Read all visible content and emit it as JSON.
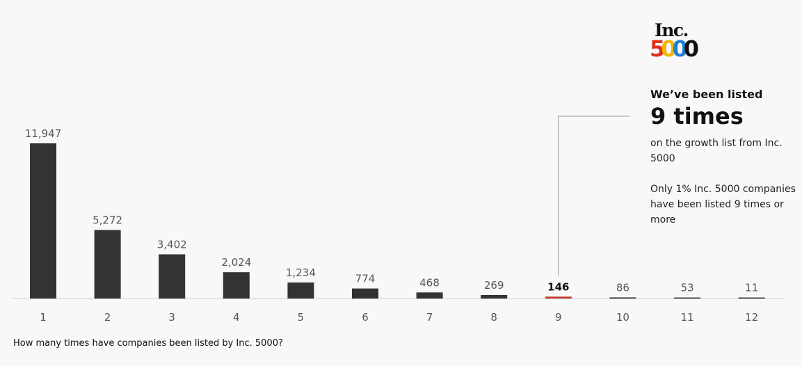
{
  "logo": {
    "word": "Inc.",
    "digits": [
      "5",
      "0",
      "0",
      "0"
    ]
  },
  "callout": {
    "kicker": "We’ve been listed",
    "big": "9 times",
    "text": "on the growth list from Inc. 5000",
    "text2": "Only 1% Inc. 5000 companies have been listed 9 times or more"
  },
  "caption": "How many times have companies been listed by Inc. 5000?",
  "chart_data": {
    "type": "bar",
    "categories": [
      "1",
      "2",
      "3",
      "4",
      "5",
      "6",
      "7",
      "8",
      "9",
      "10",
      "11",
      "12"
    ],
    "values": [
      11947,
      5272,
      3402,
      2024,
      1234,
      774,
      468,
      269,
      146,
      86,
      53,
      11
    ],
    "value_labels": [
      "11,947",
      "5,272",
      "3,402",
      "2,024",
      "1,234",
      "774",
      "468",
      "269",
      "146",
      "86",
      "53",
      "11"
    ],
    "highlight_index": 8,
    "ylim": [
      0,
      11947
    ],
    "grid": false,
    "colors": {
      "bar": "#333333",
      "highlight": "#c0392b",
      "baseline": "#cfcfcf",
      "label": "#555555",
      "highlight_label": "#111111",
      "leader": "#999999"
    }
  }
}
